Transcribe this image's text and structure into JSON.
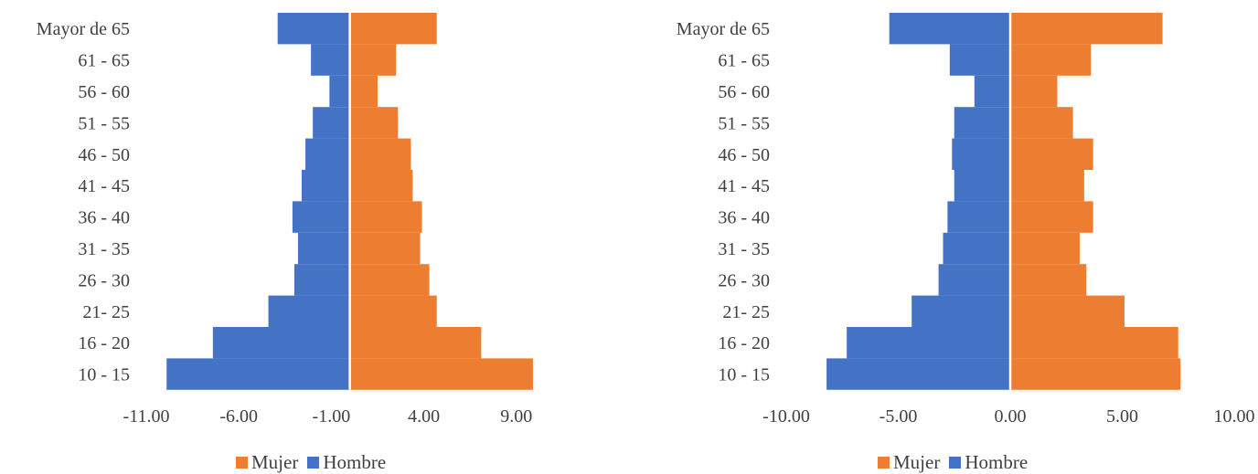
{
  "colors": {
    "mujer": "#ED7D31",
    "hombre": "#4472C4",
    "text": "#404040"
  },
  "chart_data": [
    {
      "type": "bar",
      "orientation": "horizontal",
      "stacked": "diverging",
      "categories": [
        "Mayor de 65",
        "61 - 65",
        "56 - 60",
        "51 - 55",
        "46 - 50",
        "41 - 45",
        "36 - 40",
        "31 - 35",
        "26 - 30",
        "21- 25",
        "16 - 20",
        "10 - 15"
      ],
      "series": [
        {
          "name": "Mujer",
          "values": [
            4.7,
            2.5,
            1.5,
            2.6,
            3.3,
            3.4,
            3.9,
            3.8,
            4.3,
            4.7,
            7.1,
            9.9
          ]
        },
        {
          "name": "Hombre",
          "values": [
            -3.9,
            -2.1,
            -1.1,
            -2.0,
            -2.4,
            -2.6,
            -3.1,
            -2.8,
            -3.0,
            -4.4,
            -7.4,
            -9.9
          ]
        }
      ],
      "xlim": [
        -11,
        10
      ],
      "xticks": [
        "-11.00",
        "-6.00",
        "-1.00",
        "4.00",
        "9.00"
      ],
      "xtick_values": [
        -11,
        -6,
        -1,
        4,
        9
      ],
      "legend": [
        "Mujer",
        "Hombre"
      ],
      "legend_position": "bottom",
      "grid": false
    },
    {
      "type": "bar",
      "orientation": "horizontal",
      "stacked": "diverging",
      "categories": [
        "Mayor de 65",
        "61 - 65",
        "56 - 60",
        "51 - 55",
        "46 - 50",
        "41 - 45",
        "36 - 40",
        "31 - 35",
        "26 - 30",
        "21- 25",
        "16 - 20",
        "10 - 15"
      ],
      "series": [
        {
          "name": "Mujer",
          "values": [
            6.8,
            3.6,
            2.1,
            2.8,
            3.7,
            3.3,
            3.7,
            3.1,
            3.4,
            5.1,
            7.5,
            7.6
          ]
        },
        {
          "name": "Hombre",
          "values": [
            -5.4,
            -2.7,
            -1.6,
            -2.5,
            -2.6,
            -2.5,
            -2.8,
            -3.0,
            -3.2,
            -4.4,
            -7.3,
            -8.2
          ]
        }
      ],
      "xlim": [
        -10,
        10
      ],
      "xticks": [
        "-10.00",
        "-5.00",
        "0.00",
        "5.00",
        "10.00"
      ],
      "xtick_values": [
        -10,
        -5,
        0,
        5,
        10
      ],
      "legend": [
        "Mujer",
        "Hombre"
      ],
      "legend_position": "bottom",
      "grid": false
    }
  ]
}
